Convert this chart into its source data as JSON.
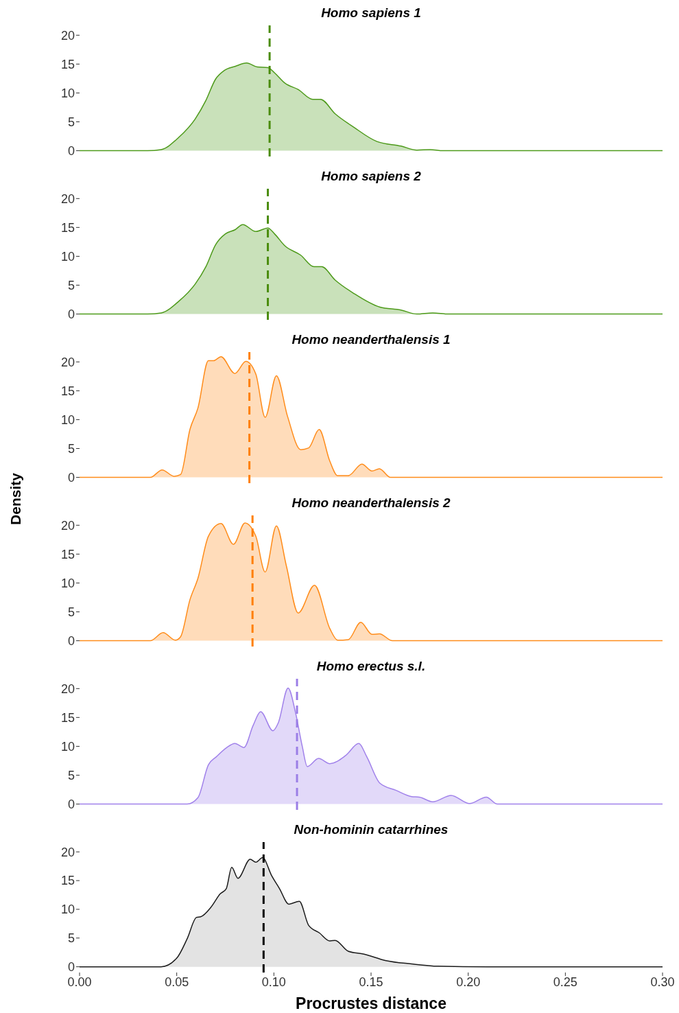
{
  "chart_data": [
    {
      "type": "area",
      "title": "Homo sapiens 1",
      "xlim": [
        0,
        0.3
      ],
      "ylim": [
        -1,
        21.7
      ],
      "yticks": [
        0,
        5,
        10,
        15,
        20
      ],
      "tick_labels": "y",
      "grid": false,
      "legend": false,
      "ref_lines": [
        {
          "axis": "x",
          "value": 0.0978,
          "color": "#4a8c0c",
          "line_style": "dashed"
        }
      ],
      "series": [
        {
          "color": "#4d9a1a",
          "x": [
            0,
            0.035,
            0.042,
            0.051,
            0.0595,
            0.065,
            0.07,
            0.0745,
            0.08,
            0.086,
            0.0914,
            0.0969,
            0.1003,
            0.1057,
            0.1125,
            0.12,
            0.124,
            0.1315,
            0.141,
            0.153,
            0.1654,
            0.1736,
            0.1804,
            0.187,
            0.3
          ],
          "values": [
            0,
            0,
            0.2,
            2.3,
            5.5,
            8.7,
            12.4,
            13.9,
            14.6,
            15.2,
            14.5,
            14.4,
            13.5,
            11.7,
            10.6,
            8.9,
            8.9,
            6.4,
            4.1,
            1.6,
            0.8,
            0.1,
            0.2,
            0,
            0
          ]
        }
      ]
    },
    {
      "type": "area",
      "title": "Homo sapiens 2",
      "xlim": [
        0,
        0.3
      ],
      "ylim": [
        -1,
        21.7
      ],
      "yticks": [
        0,
        5,
        10,
        15,
        20
      ],
      "tick_labels": "y",
      "grid": false,
      "legend": false,
      "ref_lines": [
        {
          "axis": "x",
          "value": 0.0969,
          "color": "#4a8c0c",
          "line_style": "dashed"
        }
      ],
      "series": [
        {
          "color": "#4d9a1a",
          "x": [
            0,
            0.035,
            0.042,
            0.051,
            0.0595,
            0.065,
            0.07,
            0.0751,
            0.08,
            0.084,
            0.0907,
            0.0969,
            0.1003,
            0.1057,
            0.1138,
            0.1206,
            0.1246,
            0.1315,
            0.141,
            0.1546,
            0.1654,
            0.1736,
            0.1817,
            0.19,
            0.3
          ],
          "values": [
            0,
            0,
            0.2,
            2.2,
            5.2,
            8.2,
            12,
            13.9,
            14.6,
            15.5,
            14.3,
            14.9,
            13.9,
            11.8,
            10.2,
            8.2,
            8.2,
            5.9,
            3.6,
            1.2,
            0.7,
            0,
            0.2,
            0,
            0
          ]
        }
      ]
    },
    {
      "type": "area",
      "title": "Homo neanderthalensis 1",
      "ylabel": "Density",
      "xlim": [
        0,
        0.3
      ],
      "ylim": [
        -1,
        21.7
      ],
      "yticks": [
        0,
        5,
        10,
        15,
        20
      ],
      "tick_labels": "y",
      "grid": false,
      "legend": false,
      "ref_lines": [
        {
          "axis": "x",
          "value": 0.0874,
          "color": "#ff7f00",
          "line_style": "dashed"
        }
      ],
      "series": [
        {
          "color": "#ff8c1a",
          "x": [
            0,
            0.0364,
            0.0425,
            0.0486,
            0.052,
            0.0568,
            0.0609,
            0.0663,
            0.069,
            0.0728,
            0.0799,
            0.0856,
            0.0907,
            0.0955,
            0.1013,
            0.107,
            0.1138,
            0.1179,
            0.1233,
            0.1288,
            0.1328,
            0.1383,
            0.1453,
            0.1505,
            0.1543,
            0.16,
            0.3
          ],
          "values": [
            0,
            0,
            1.3,
            0.2,
            0.5,
            8.3,
            12,
            20.2,
            20.2,
            20.9,
            18,
            20.1,
            17.9,
            10.4,
            17.6,
            10.6,
            4.8,
            5.1,
            8.3,
            2.8,
            0.3,
            0.3,
            2.3,
            1.1,
            1.5,
            0,
            0
          ]
        }
      ]
    },
    {
      "type": "area",
      "title": "Homo neanderthalensis 2",
      "xlim": [
        0,
        0.3
      ],
      "ylim": [
        -1,
        21.7
      ],
      "yticks": [
        0,
        5,
        10,
        15,
        20
      ],
      "tick_labels": "y",
      "grid": false,
      "legend": false,
      "ref_lines": [
        {
          "axis": "x",
          "value": 0.089,
          "color": "#ff7f00",
          "line_style": "dashed"
        }
      ],
      "series": [
        {
          "color": "#ff8c1a",
          "x": [
            0,
            0.0364,
            0.043,
            0.0493,
            0.052,
            0.0568,
            0.0609,
            0.0663,
            0.0728,
            0.0792,
            0.0851,
            0.0907,
            0.0955,
            0.1013,
            0.1064,
            0.1125,
            0.1209,
            0.1288,
            0.1328,
            0.1383,
            0.1447,
            0.1505,
            0.1543,
            0.161,
            0.3
          ],
          "values": [
            0,
            0,
            1.4,
            0.1,
            0.7,
            7.1,
            10.8,
            18.1,
            20.3,
            16.7,
            20.4,
            18.1,
            11.9,
            19.9,
            13,
            4.8,
            9.6,
            2.1,
            0.1,
            0.2,
            3.2,
            1.1,
            1.2,
            0,
            0
          ]
        }
      ]
    },
    {
      "type": "area",
      "title": "Homo erectus s.l.",
      "xlim": [
        0,
        0.3
      ],
      "ylim": [
        -1,
        21.7
      ],
      "yticks": [
        0,
        5,
        10,
        15,
        20
      ],
      "tick_labels": "y",
      "grid": false,
      "legend": false,
      "ref_lines": [
        {
          "axis": "x",
          "value": 0.1119,
          "color": "#9b7ee6",
          "line_style": "dashed"
        }
      ],
      "series": [
        {
          "color": "#a081ea",
          "x": [
            0,
            0.0554,
            0.0609,
            0.0663,
            0.0704,
            0.0758,
            0.0799,
            0.0846,
            0.0893,
            0.0932,
            0.0995,
            0.1023,
            0.1073,
            0.1111,
            0.1146,
            0.1172,
            0.123,
            0.1288,
            0.1369,
            0.1437,
            0.1478,
            0.1546,
            0.1627,
            0.1709,
            0.1749,
            0.1817,
            0.1912,
            0.2007,
            0.2093,
            0.215,
            0.3
          ],
          "values": [
            0,
            0,
            1.1,
            6.8,
            8.2,
            9.8,
            10.5,
            9.8,
            13.6,
            16,
            12.7,
            14.1,
            20.1,
            15.9,
            10,
            6.5,
            7.9,
            7,
            8.4,
            10.5,
            8.2,
            3.6,
            2.4,
            1.3,
            1.2,
            0.4,
            1.5,
            0.1,
            1.2,
            0,
            0
          ]
        }
      ]
    },
    {
      "type": "area",
      "title": "Non-hominin catarrhines",
      "xlabel": "Procrustes distance",
      "xlim": [
        0,
        0.3
      ],
      "xticks": [
        {
          "value": 0,
          "label": "0.00"
        },
        {
          "value": 0.05,
          "label": "0.05"
        },
        {
          "value": 0.1,
          "label": "0.10"
        },
        {
          "value": 0.15,
          "label": "0.15"
        },
        {
          "value": 0.2,
          "label": "0.20"
        },
        {
          "value": 0.25,
          "label": "0.25"
        },
        {
          "value": 0.3,
          "label": "0.30"
        }
      ],
      "ylim": [
        -1,
        21.7
      ],
      "yticks": [
        0,
        5,
        10,
        15,
        20
      ],
      "grid": false,
      "legend": false,
      "ref_lines": [
        {
          "axis": "x",
          "value": 0.0947,
          "color": "#000000",
          "line_style": "dashed"
        }
      ],
      "series": [
        {
          "color": "#1a1a1a",
          "x": [
            0,
            0.0419,
            0.05,
            0.0554,
            0.0602,
            0.0623,
            0.0677,
            0.0724,
            0.0755,
            0.0783,
            0.0815,
            0.0878,
            0.0907,
            0.0942,
            0.0988,
            0.1029,
            0.1077,
            0.1131,
            0.1179,
            0.1234,
            0.1288,
            0.1315,
            0.1383,
            0.1464,
            0.1573,
            0.1709,
            0.1845,
            0.21,
            0.3
          ],
          "values": [
            0,
            0,
            1.5,
            4.9,
            8.6,
            8.7,
            10.4,
            12.7,
            13.6,
            17.3,
            15.4,
            18.7,
            18.2,
            19,
            15.9,
            13.6,
            10.9,
            11.4,
            7.2,
            5.9,
            4.5,
            4.6,
            2.7,
            2.2,
            1.1,
            0.5,
            0.1,
            0,
            0
          ]
        }
      ]
    }
  ]
}
